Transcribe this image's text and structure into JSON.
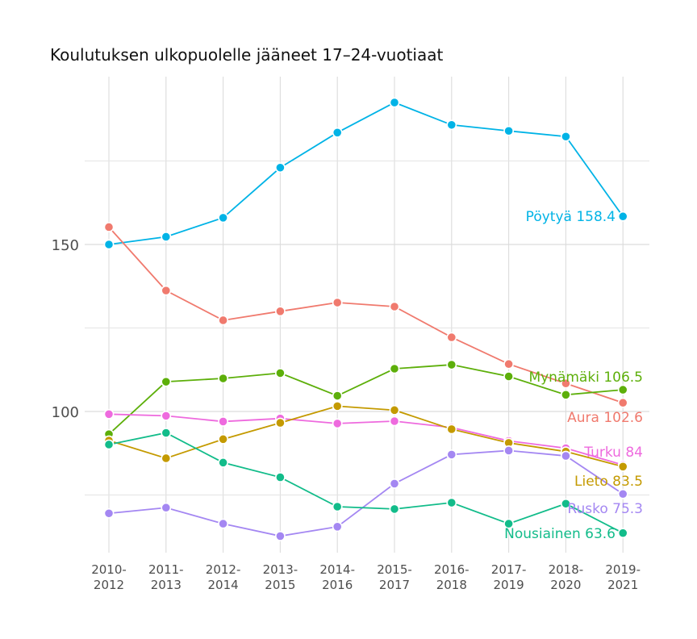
{
  "chart_data": {
    "type": "line",
    "title": "Koulutuksen ulkopuolelle jääneet 17–24-vuotiaat",
    "xlabel": "",
    "ylabel": "",
    "categories": [
      "2010-2012",
      "2011-2013",
      "2012-2014",
      "2013-2015",
      "2014-2016",
      "2015-2017",
      "2016-2018",
      "2017-2019",
      "2018-2020",
      "2019-2021"
    ],
    "x_tick_labels": [
      [
        "2010-",
        "2012"
      ],
      [
        "2011-",
        "2013"
      ],
      [
        "2012-",
        "2014"
      ],
      [
        "2013-",
        "2015"
      ],
      [
        "2014-",
        "2016"
      ],
      [
        "2015-",
        "2017"
      ],
      [
        "2016-",
        "2018"
      ],
      [
        "2017-",
        "2019"
      ],
      [
        "2018-",
        "2020"
      ],
      [
        "2019-",
        "2021"
      ]
    ],
    "y_ticks": [
      100,
      150
    ],
    "y_minor_ticks": [
      75,
      125,
      175
    ],
    "ylim": [
      60,
      212
    ],
    "grid": true,
    "legend": "none",
    "series": [
      {
        "name": "Pöytyä",
        "end_label": "Pöytyä 158.4",
        "color": "#00B3E6",
        "values": [
          150.0,
          152.3,
          158.0,
          173.0,
          183.5,
          192.5,
          185.8,
          184.0,
          182.3,
          158.4
        ]
      },
      {
        "name": "Aura",
        "end_label": "Aura 102.6",
        "color": "#F07A6E",
        "values": [
          155.2,
          136.2,
          127.3,
          130.0,
          132.6,
          131.4,
          122.2,
          114.2,
          108.4,
          102.6
        ]
      },
      {
        "name": "Mynämäki",
        "end_label": "Mynämäki 106.5",
        "color": "#5DAF0A",
        "values": [
          93.2,
          108.9,
          109.9,
          111.5,
          104.7,
          112.8,
          114.0,
          110.5,
          105.0,
          106.5
        ]
      },
      {
        "name": "Turku",
        "end_label": "Turku 84",
        "color": "#EE6ADE",
        "values": [
          99.2,
          98.7,
          97.0,
          97.9,
          96.4,
          97.1,
          95.2,
          91.2,
          89.0,
          84.0
        ]
      },
      {
        "name": "Lieto",
        "end_label": "Lieto 83.5",
        "color": "#C49A00",
        "values": [
          91.3,
          86.0,
          91.7,
          96.6,
          101.6,
          100.4,
          94.7,
          90.6,
          88.0,
          83.5
        ]
      },
      {
        "name": "Rusko",
        "end_label": "Rusko 75.3",
        "color": "#A487F2",
        "values": [
          69.5,
          71.2,
          66.4,
          62.7,
          65.5,
          78.4,
          87.1,
          88.3,
          86.7,
          75.3
        ]
      },
      {
        "name": "Nousiainen",
        "end_label": "Nousiainen 63.6",
        "color": "#12BC8A",
        "values": [
          90.1,
          93.6,
          84.7,
          80.3,
          71.5,
          70.8,
          72.7,
          66.4,
          72.4,
          63.6
        ]
      }
    ]
  }
}
